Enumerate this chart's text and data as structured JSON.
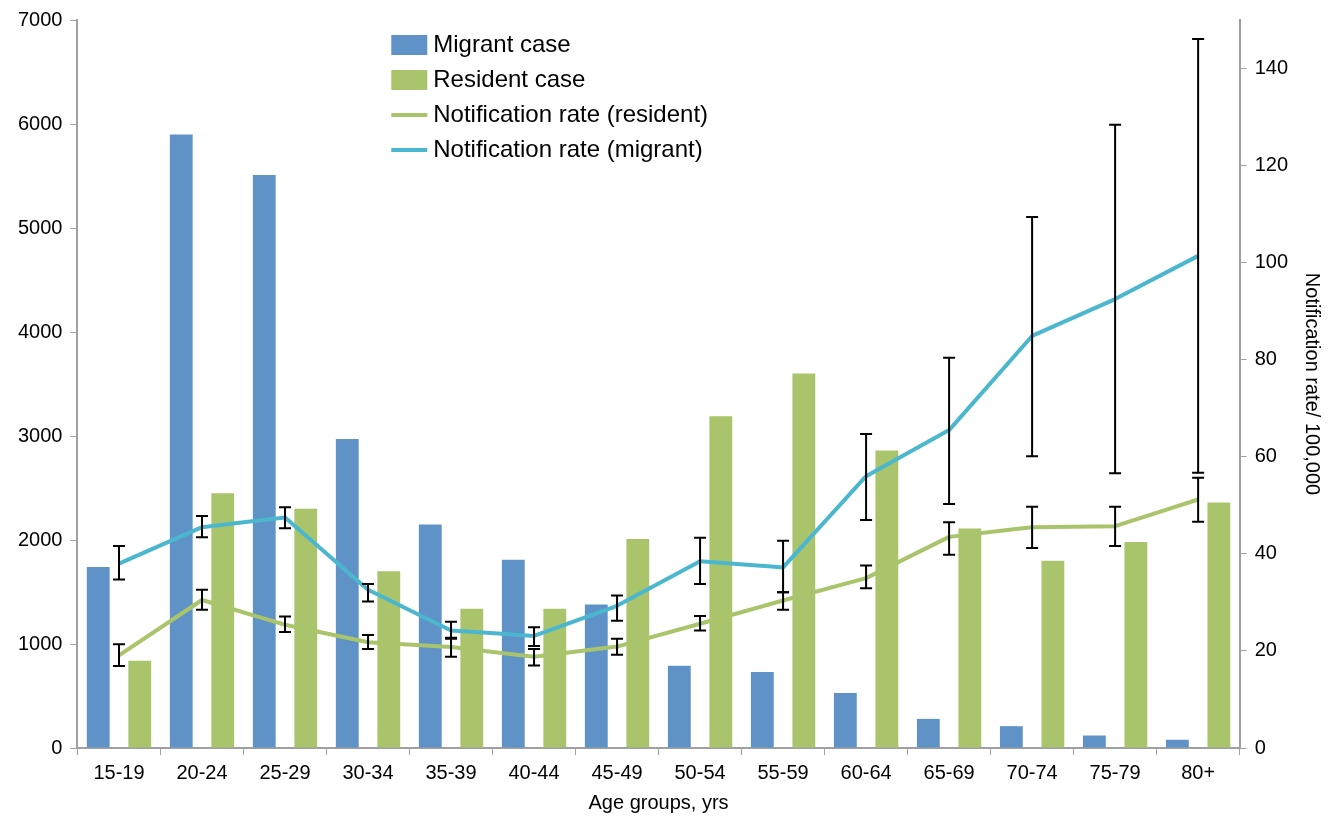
{
  "chart_data": {
    "type": "bar",
    "xlabel": "Age groups, yrs",
    "y2label": "Notification rate/ 100,000",
    "categories": [
      "15-19",
      "20-24",
      "25-29",
      "30-34",
      "35-39",
      "40-44",
      "45-49",
      "50-54",
      "55-59",
      "60-64",
      "65-69",
      "70-74",
      "75-79",
      "80+"
    ],
    "ylim": [
      0,
      7000
    ],
    "yticks": [
      0,
      1000,
      2000,
      3000,
      4000,
      5000,
      6000,
      7000
    ],
    "y2lim": [
      0,
      150
    ],
    "y2ticks": [
      0,
      20,
      40,
      60,
      80,
      100,
      120,
      140
    ],
    "legend": "top",
    "series": [
      {
        "name": "Migrant case",
        "color": "#5f93c8",
        "values": [
          1740,
          5900,
          5510,
          2970,
          2150,
          1810,
          1380,
          790,
          730,
          530,
          280,
          210,
          120,
          80
        ]
      },
      {
        "name": "Resident case",
        "color": "#a9c46a",
        "values": [
          840,
          2450,
          2300,
          1700,
          1340,
          1340,
          2010,
          3190,
          3600,
          2860,
          2110,
          1800,
          1980,
          2360
        ]
      },
      {
        "name": "Notification rate (resident)",
        "type": "line",
        "axis": "y2",
        "color": "#a9c46a",
        "values": [
          19.1,
          30.5,
          25.4,
          21.8,
          20.8,
          18.8,
          20.9,
          25.6,
          30.4,
          35.0,
          43.5,
          45.5,
          45.7,
          51.2
        ],
        "errors": [
          [
            16.9,
            21.4
          ],
          [
            28.5,
            32.6
          ],
          [
            23.9,
            27.1
          ],
          [
            20.4,
            23.3
          ],
          [
            18.8,
            22.7
          ],
          [
            17.0,
            20.4
          ],
          [
            19.2,
            22.5
          ],
          [
            24.2,
            27.2
          ],
          [
            28.5,
            32.1
          ],
          [
            32.9,
            37.6
          ],
          [
            39.8,
            46.5
          ],
          [
            41.2,
            49.7
          ],
          [
            41.6,
            49.7
          ],
          [
            46.6,
            55.7
          ]
        ]
      },
      {
        "name": "Notification rate (migrant)",
        "type": "line",
        "axis": "y2",
        "color": "#4bb7cf",
        "values": [
          38.0,
          45.5,
          47.5,
          32.6,
          24.2,
          23.1,
          29.3,
          38.5,
          37.2,
          56.0,
          65.5,
          84.9,
          92.5,
          101.4
        ],
        "errors": [
          [
            34.7,
            41.6
          ],
          [
            43.4,
            47.8
          ],
          [
            45.3,
            49.6
          ],
          [
            30.2,
            33.8
          ],
          [
            22.5,
            26.0
          ],
          [
            21.0,
            24.9
          ],
          [
            26.2,
            31.4
          ],
          [
            33.8,
            43.3
          ],
          [
            32.1,
            42.7
          ],
          [
            47.0,
            64.7
          ],
          [
            50.3,
            80.4
          ],
          [
            60.1,
            109.4
          ],
          [
            56.6,
            128.4
          ],
          [
            56.7,
            146.1
          ]
        ]
      }
    ]
  }
}
